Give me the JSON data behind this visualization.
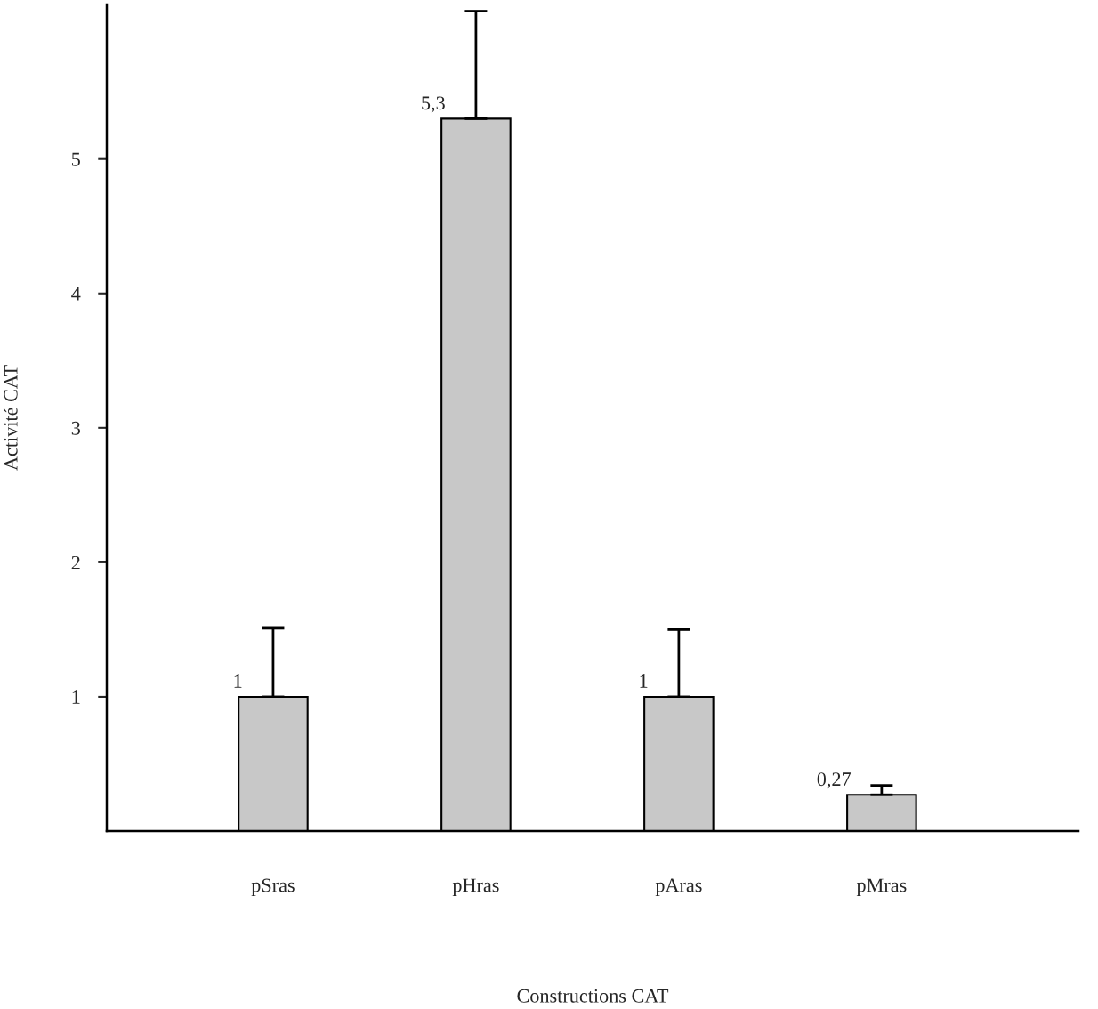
{
  "chart_data": {
    "type": "bar",
    "xlabel": "Constructions CAT",
    "ylabel": "Activité CAT",
    "categories": [
      "pSras",
      "pHras",
      "pAras",
      "pMras"
    ],
    "values": [
      1,
      5.3,
      1,
      0.27
    ],
    "value_labels": [
      "1",
      "5,3",
      "1",
      "0,27"
    ],
    "errors": [
      [
        1,
        1.51
      ],
      [
        5.3,
        6.1
      ],
      [
        1,
        1.5
      ],
      [
        0.27,
        0.34
      ]
    ],
    "color": "#c8c8c8",
    "ylim": [
      0,
      6.15
    ],
    "yticks": [
      1,
      2,
      3,
      4,
      5
    ],
    "grid": false
  }
}
